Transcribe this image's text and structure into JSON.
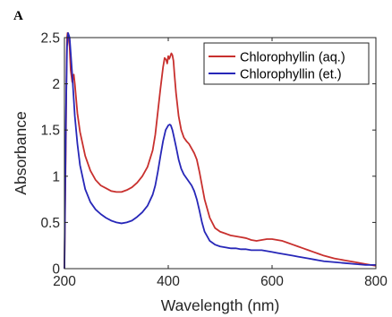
{
  "panel_label": "A",
  "colors": {
    "aq": "#c8302e",
    "et": "#2727b8",
    "axis": "#262626"
  },
  "chart_data": {
    "type": "line",
    "title": "",
    "xlabel": "Wavelength (nm)",
    "ylabel": "Absorbance",
    "xlim": [
      200,
      800
    ],
    "ylim": [
      0,
      2.5
    ],
    "xticks": [
      "200",
      "400",
      "600",
      "800"
    ],
    "yticks": [
      "0",
      "0.5",
      "1",
      "1.5",
      "2",
      "2.5"
    ],
    "grid": false,
    "legend_position": "top-right",
    "series": [
      {
        "name": "Chlorophyllin (aq.)",
        "color": "#c8302e",
        "x": [
          200,
          201,
          203,
          204,
          205,
          206,
          208,
          210,
          212,
          215,
          218,
          220,
          225,
          230,
          240,
          250,
          260,
          270,
          280,
          290,
          300,
          310,
          320,
          330,
          340,
          350,
          360,
          370,
          375,
          380,
          385,
          390,
          393,
          396,
          398,
          400,
          402,
          404,
          406,
          408,
          410,
          412,
          415,
          420,
          425,
          430,
          435,
          440,
          445,
          450,
          455,
          460,
          465,
          470,
          480,
          490,
          500,
          510,
          520,
          530,
          540,
          550,
          560,
          570,
          580,
          590,
          600,
          610,
          620,
          630,
          640,
          650,
          660,
          670,
          680,
          690,
          700,
          720,
          740,
          760,
          780,
          800
        ],
        "y": [
          0.0,
          0.5,
          1.5,
          2.15,
          2.5,
          2.55,
          2.5,
          2.4,
          2.15,
          2.02,
          2.1,
          2.0,
          1.68,
          1.48,
          1.22,
          1.06,
          0.96,
          0.9,
          0.87,
          0.84,
          0.83,
          0.83,
          0.85,
          0.88,
          0.93,
          1.0,
          1.1,
          1.28,
          1.45,
          1.7,
          1.95,
          2.18,
          2.28,
          2.26,
          2.22,
          2.3,
          2.27,
          2.3,
          2.33,
          2.31,
          2.25,
          2.1,
          1.9,
          1.65,
          1.5,
          1.42,
          1.38,
          1.35,
          1.3,
          1.25,
          1.18,
          1.05,
          0.9,
          0.75,
          0.55,
          0.44,
          0.4,
          0.38,
          0.36,
          0.35,
          0.34,
          0.33,
          0.31,
          0.3,
          0.31,
          0.32,
          0.32,
          0.31,
          0.3,
          0.28,
          0.26,
          0.24,
          0.22,
          0.2,
          0.18,
          0.16,
          0.14,
          0.11,
          0.09,
          0.07,
          0.05,
          0.03
        ]
      },
      {
        "name": "Chlorophyllin (et.)",
        "color": "#2727b8",
        "x": [
          200,
          201,
          203,
          205,
          207,
          210,
          215,
          220,
          225,
          230,
          240,
          250,
          260,
          270,
          280,
          290,
          300,
          310,
          320,
          330,
          340,
          350,
          360,
          370,
          375,
          380,
          385,
          390,
          395,
          400,
          403,
          405,
          408,
          410,
          415,
          420,
          425,
          430,
          435,
          440,
          445,
          450,
          455,
          460,
          465,
          470,
          480,
          490,
          500,
          510,
          520,
          530,
          540,
          550,
          560,
          570,
          580,
          590,
          600,
          610,
          620,
          630,
          640,
          650,
          660,
          670,
          680,
          690,
          700,
          720,
          740,
          760,
          780,
          800
        ],
        "y": [
          0.0,
          0.6,
          1.7,
          2.4,
          2.55,
          2.5,
          2.1,
          1.65,
          1.35,
          1.12,
          0.86,
          0.72,
          0.64,
          0.59,
          0.55,
          0.52,
          0.5,
          0.49,
          0.5,
          0.52,
          0.56,
          0.61,
          0.68,
          0.8,
          0.9,
          1.05,
          1.22,
          1.38,
          1.5,
          1.55,
          1.56,
          1.55,
          1.5,
          1.45,
          1.32,
          1.18,
          1.08,
          1.02,
          0.98,
          0.94,
          0.9,
          0.84,
          0.75,
          0.63,
          0.5,
          0.4,
          0.3,
          0.26,
          0.24,
          0.23,
          0.22,
          0.22,
          0.21,
          0.21,
          0.2,
          0.2,
          0.2,
          0.19,
          0.18,
          0.17,
          0.16,
          0.15,
          0.14,
          0.13,
          0.12,
          0.11,
          0.1,
          0.09,
          0.08,
          0.07,
          0.06,
          0.05,
          0.04,
          0.04
        ]
      }
    ]
  }
}
